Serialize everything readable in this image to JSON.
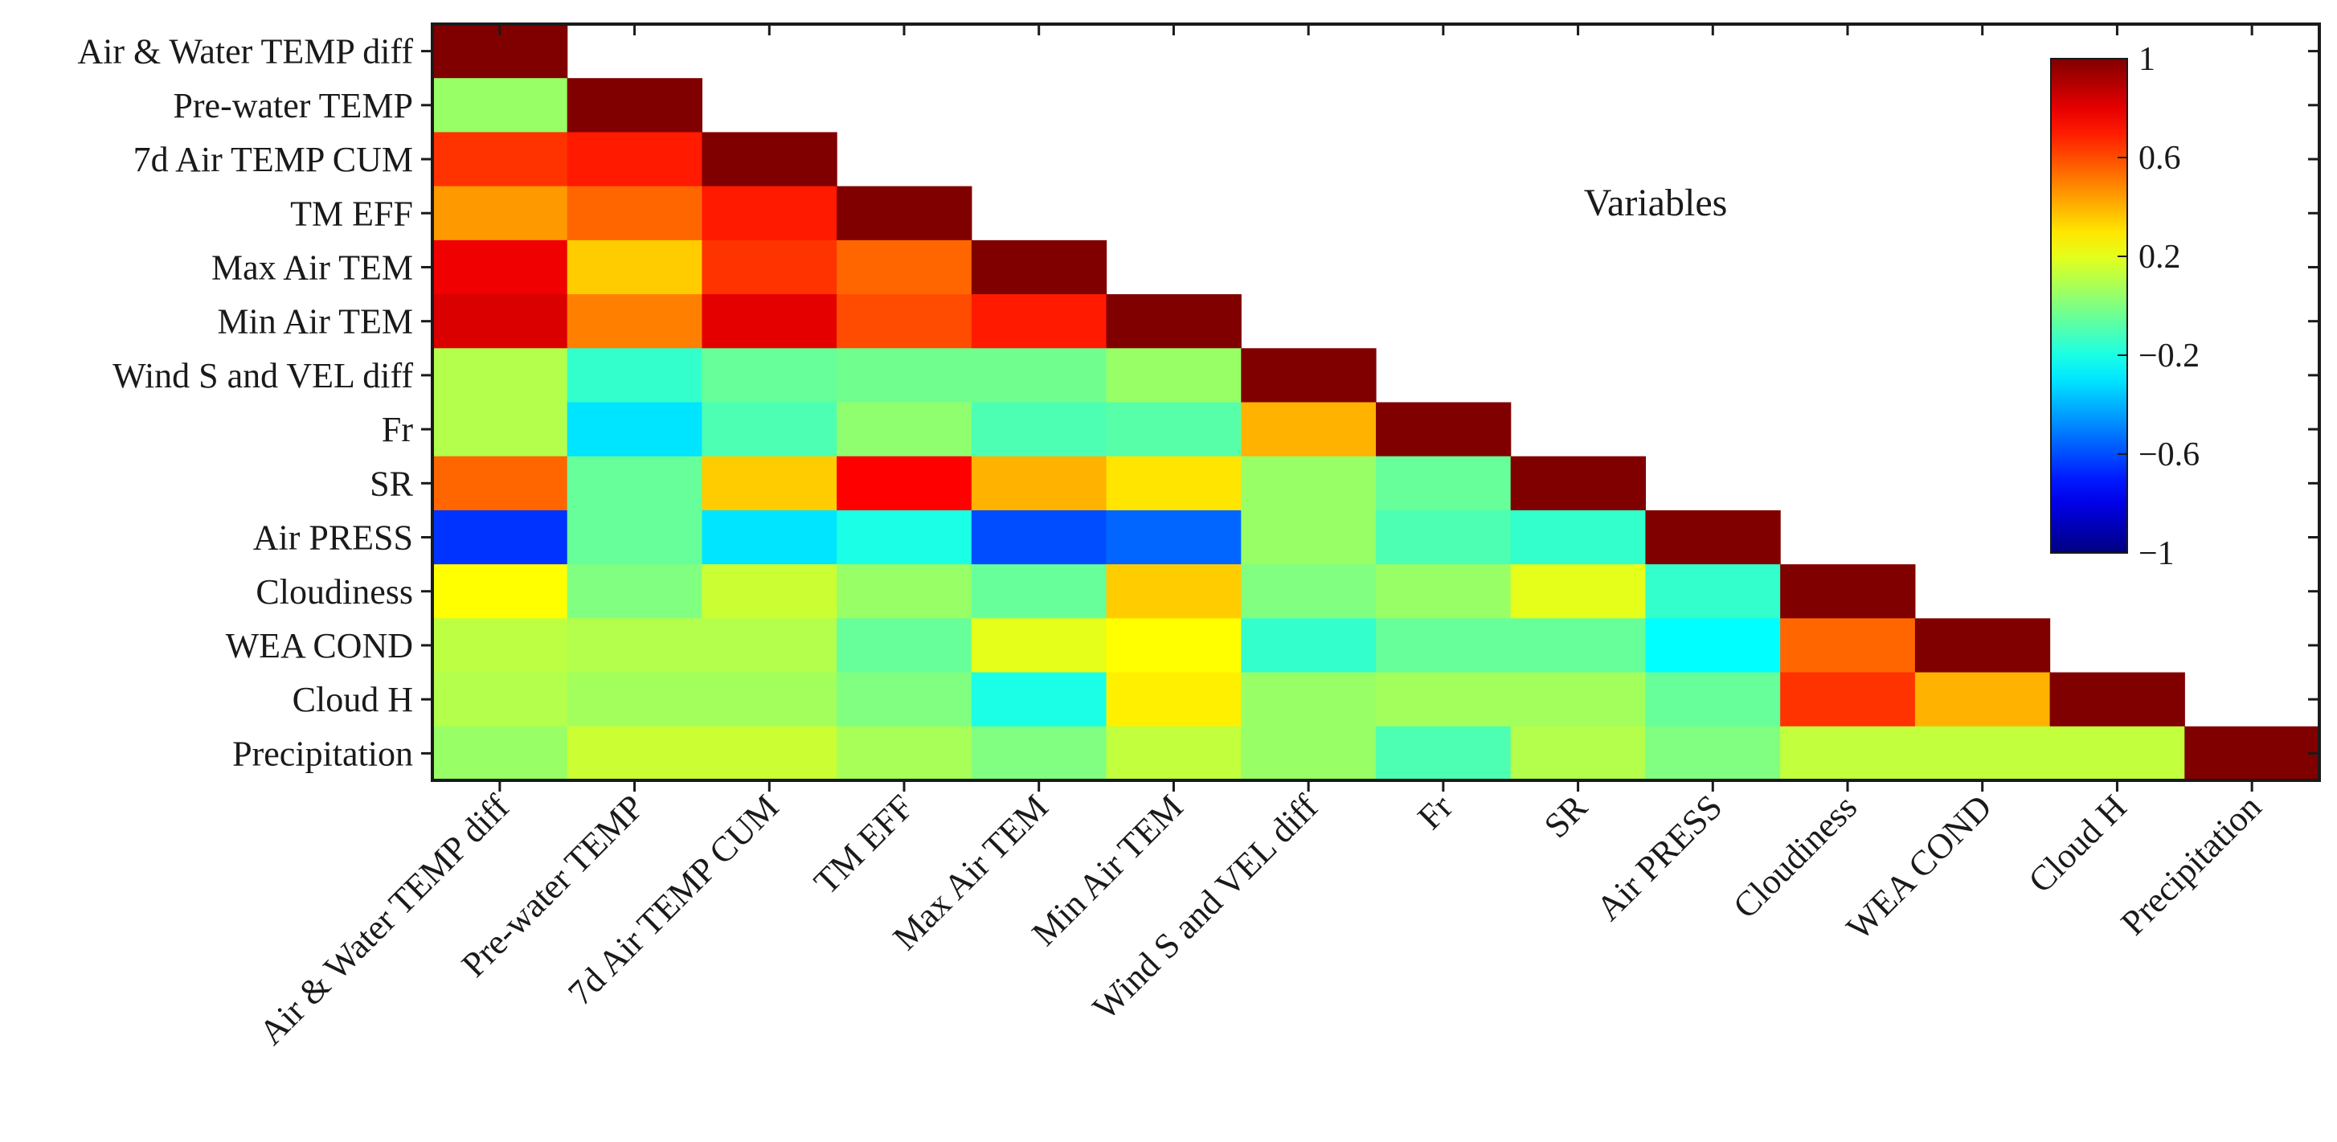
{
  "chart_data": {
    "type": "heatmap",
    "variables": [
      "Air & Water TEMP diff",
      "Pre-water TEMP",
      "7d Air TEMP CUM",
      "TM EFF",
      "Max Air TEM",
      "Min Air TEM",
      "Wind S and VEL diff",
      "Fr",
      "SR",
      "Air PRESS",
      "Cloudiness",
      "WEA COND",
      "Cloud H",
      "Precipitation"
    ],
    "matrix_shape": "lower-triangular",
    "values": [
      [
        1.0
      ],
      [
        0.05,
        1.0
      ],
      [
        0.65,
        0.7,
        1.0
      ],
      [
        0.45,
        0.55,
        0.7,
        1.0
      ],
      [
        0.78,
        0.35,
        0.65,
        0.55,
        1.0
      ],
      [
        0.82,
        0.5,
        0.8,
        0.6,
        0.7,
        1.0
      ],
      [
        0.1,
        -0.15,
        -0.05,
        -0.03,
        -0.03,
        0.05,
        1.0
      ],
      [
        0.1,
        -0.3,
        -0.1,
        0.03,
        -0.1,
        -0.08,
        0.4,
        1.0
      ],
      [
        0.55,
        -0.05,
        0.35,
        0.75,
        0.4,
        0.3,
        0.05,
        -0.05,
        1.0
      ],
      [
        -0.65,
        -0.05,
        -0.3,
        -0.2,
        -0.6,
        -0.55,
        0.05,
        -0.1,
        -0.15,
        1.0
      ],
      [
        0.25,
        0.0,
        0.15,
        0.05,
        -0.05,
        0.35,
        0.0,
        0.05,
        0.2,
        -0.15,
        1.0
      ],
      [
        0.12,
        0.1,
        0.1,
        -0.05,
        0.2,
        0.25,
        -0.15,
        -0.05,
        -0.05,
        -0.25,
        0.55,
        1.0
      ],
      [
        0.1,
        0.07,
        0.07,
        0.0,
        -0.2,
        0.28,
        0.05,
        0.07,
        0.07,
        -0.05,
        0.65,
        0.4,
        1.0
      ],
      [
        0.05,
        0.15,
        0.15,
        0.08,
        0.0,
        0.13,
        0.05,
        -0.1,
        0.1,
        0.0,
        0.13,
        0.13,
        0.13,
        1.0
      ]
    ],
    "colorbar": {
      "colormap": "jet",
      "range": [
        -1,
        1
      ],
      "ticks": [
        "1",
        "0.6",
        "0.2",
        "−0.2",
        "−0.6",
        "−1"
      ]
    },
    "annotation": "Variables",
    "grid": false
  }
}
